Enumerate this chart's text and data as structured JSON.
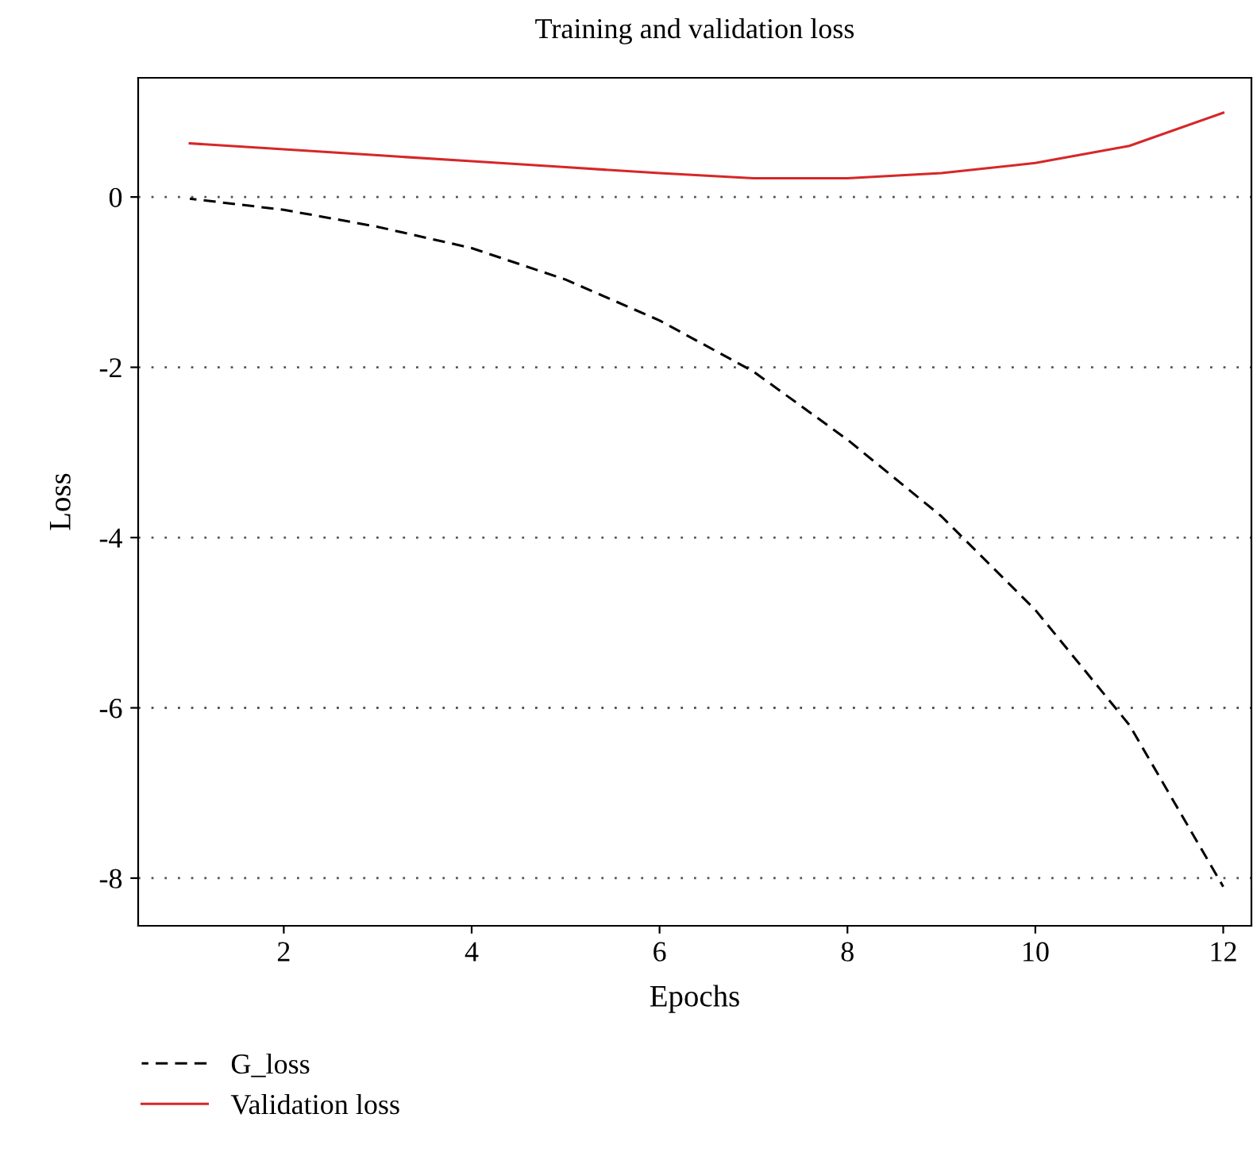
{
  "chart_data": {
    "type": "line",
    "title": "Training and validation loss",
    "xlabel": "Epochs",
    "ylabel": "Loss",
    "x": [
      1,
      2,
      3,
      4,
      5,
      6,
      7,
      8,
      9,
      10,
      11,
      12
    ],
    "series": [
      {
        "name": "G_loss",
        "color": "#000000",
        "line_style": "dashed",
        "values": [
          -0.02,
          -0.15,
          -0.35,
          -0.6,
          -0.97,
          -1.45,
          -2.05,
          -2.85,
          -3.75,
          -4.85,
          -6.2,
          -8.1
        ]
      },
      {
        "name": "Validation loss",
        "color": "#d62728",
        "line_style": "solid",
        "values": [
          0.63,
          0.56,
          0.49,
          0.42,
          0.35,
          0.28,
          0.22,
          0.22,
          0.28,
          0.4,
          0.6,
          0.99
        ]
      }
    ],
    "xlim": [
      0.45,
      12.3
    ],
    "xticks": [
      2,
      4,
      6,
      8,
      10,
      12
    ],
    "ylim": [
      -8.56,
      1.4
    ],
    "yticks": [
      -8,
      -6,
      -4,
      -2,
      0
    ],
    "grid": "y",
    "legend": "bottom left"
  }
}
